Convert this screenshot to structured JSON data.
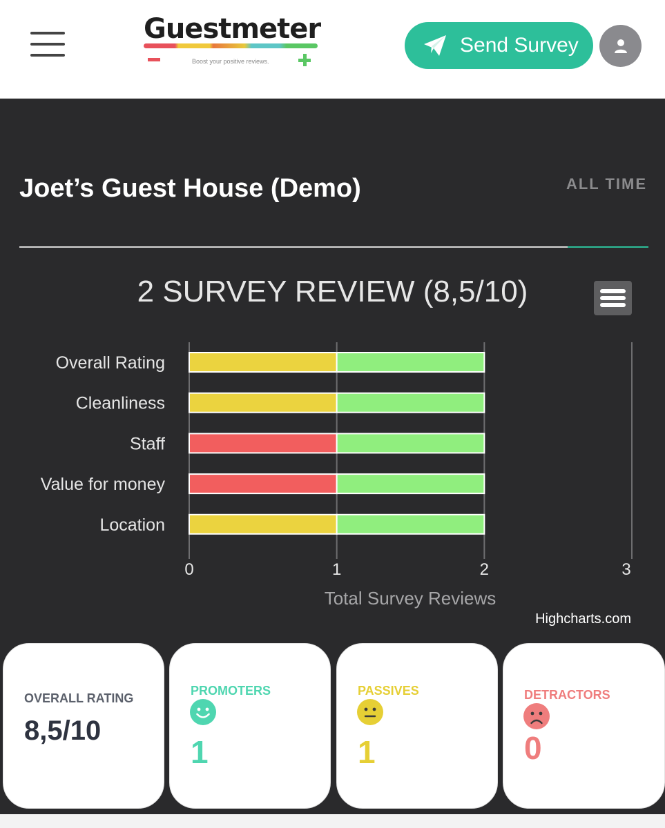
{
  "header": {
    "logo_text": "Guestmeter",
    "logo_tagline": "Boost your positive reviews.",
    "send_button_label": "Send Survey"
  },
  "page": {
    "title": "Joet’s Guest House (Demo)",
    "range_label": "ALL TIME"
  },
  "chart_data": {
    "type": "bar",
    "orientation": "horizontal",
    "stacked": true,
    "title": "2 SURVEY REVIEW (8,5/10)",
    "xlabel": "",
    "ylabel": "Total Survey Reviews",
    "categories": [
      "Overall Rating",
      "Cleanliness",
      "Staff",
      "Value for money",
      "Location"
    ],
    "xlim": [
      0,
      3
    ],
    "ticks": [
      "0",
      "1",
      "2",
      "3"
    ],
    "grid": true,
    "legend": "none",
    "segments": [
      [
        {
          "color": "#ebd33f",
          "value": 1
        },
        {
          "color": "#90ee7e",
          "value": 1
        }
      ],
      [
        {
          "color": "#ebd33f",
          "value": 1
        },
        {
          "color": "#90ee7e",
          "value": 1
        }
      ],
      [
        {
          "color": "#f25e5e",
          "value": 1
        },
        {
          "color": "#90ee7e",
          "value": 1
        }
      ],
      [
        {
          "color": "#f25e5e",
          "value": 1
        },
        {
          "color": "#90ee7e",
          "value": 1
        }
      ],
      [
        {
          "color": "#ebd33f",
          "value": 1
        },
        {
          "color": "#90ee7e",
          "value": 1
        }
      ]
    ],
    "credits": "Highcharts.com"
  },
  "stats": {
    "overall": {
      "label": "OVERALL RATING",
      "value": "8,5/10",
      "color": "#2e3340"
    },
    "promoters": {
      "label": "PROMOTERS",
      "value": "1",
      "color": "#4fd6b0"
    },
    "passives": {
      "label": "PASSIVES",
      "value": "1",
      "color": "#e6cf35"
    },
    "detractors": {
      "label": "DETRACTORS",
      "value": "0",
      "color": "#ef7d7d"
    }
  },
  "icons": {
    "menu": "hamburger-icon",
    "send": "paper-plane-icon",
    "user": "user-icon",
    "chart_menu": "chart-context-menu-icon",
    "promoters": "smiley-happy-icon",
    "passives": "smiley-neutral-icon",
    "detractors": "smiley-sad-icon"
  }
}
